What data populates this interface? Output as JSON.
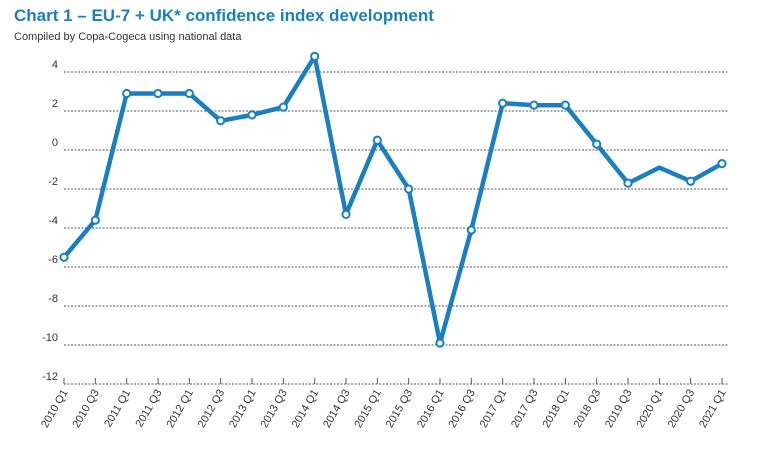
{
  "header": {
    "title": "Chart 1 – EU-7 + UK* confidence index development",
    "subtitle": "Compiled by Copa-Cogeca using national data"
  },
  "colors": {
    "line": "#1a7fc1",
    "marker_fill": "#ffffff",
    "grid": "#555555",
    "title": "#1a7fc1"
  },
  "chart_data": {
    "type": "line",
    "title": "Chart 1 – EU-7 + UK* confidence index development",
    "subtitle": "Compiled by Copa-Cogeca using national data",
    "xlabel": "",
    "ylabel": "",
    "ylim": [
      -12,
      5
    ],
    "yticks": [
      4,
      2,
      0,
      -2,
      -4,
      -6,
      -8,
      -10,
      -12
    ],
    "grid": true,
    "legend": "none",
    "x_tick_labels": [
      "2010 Q1",
      "2010 Q3",
      "2011 Q1",
      "2011 Q3",
      "2012 Q1",
      "2012 Q3",
      "2013 Q1",
      "2013 Q3",
      "2014 Q1",
      "2014 Q3",
      "2015 Q1",
      "2015 Q3",
      "2016 Q1",
      "2016 Q3",
      "2017 Q1",
      "2017 Q3",
      "2018 Q1",
      "2018 Q3",
      "2019 Q3",
      "2020 Q1",
      "2020 Q3",
      "2021 Q1"
    ],
    "series": [
      {
        "values": [
          -5.5,
          -3.6,
          2.9,
          2.9,
          2.9,
          1.5,
          1.8,
          2.2,
          4.8,
          -3.3,
          0.5,
          -2.0,
          -9.9,
          -4.1,
          2.4,
          2.3,
          2.3,
          0.3,
          -1.7,
          -0.9,
          -1.6,
          -0.7
        ],
        "markers": [
          true,
          true,
          true,
          true,
          true,
          true,
          true,
          true,
          true,
          true,
          true,
          true,
          true,
          true,
          true,
          true,
          true,
          true,
          true,
          false,
          true,
          true
        ]
      }
    ]
  }
}
